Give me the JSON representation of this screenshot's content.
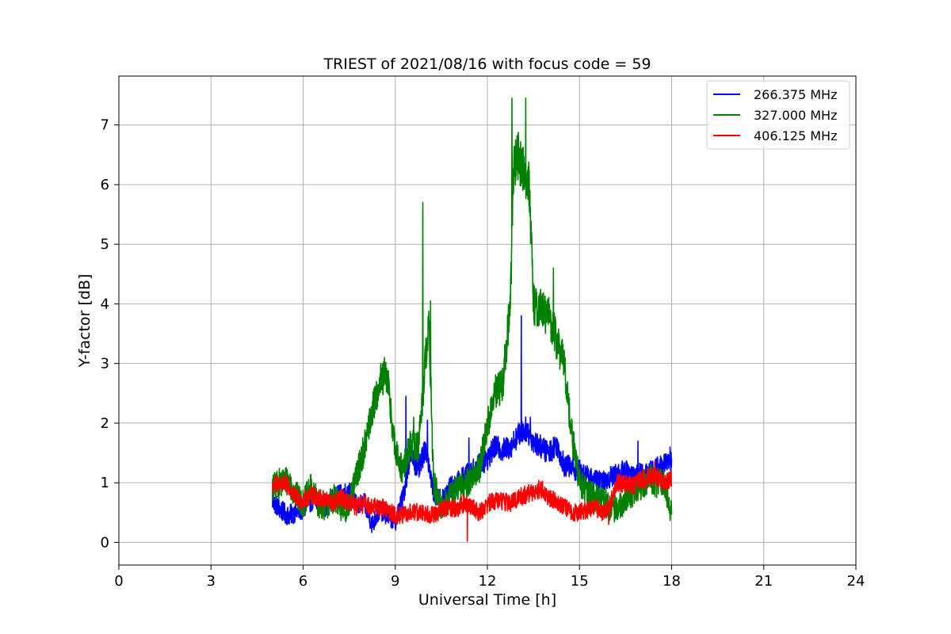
{
  "chart_data": {
    "type": "line",
    "title": "TRIEST of 2021/08/16 with focus code = 59",
    "xlabel": "Universal Time [h]",
    "ylabel": "Y-factor [dB]",
    "xlim": [
      0,
      24
    ],
    "ylim": [
      -0.38,
      7.82
    ],
    "xticks": [
      0,
      3,
      6,
      9,
      12,
      15,
      18,
      21,
      24
    ],
    "yticks": [
      0,
      1,
      2,
      3,
      4,
      5,
      6,
      7
    ],
    "grid": true,
    "legend_position": "top-right",
    "series": [
      {
        "name": "266.375 MHz",
        "color": "#0000ff",
        "points": [
          [
            5.0,
            0.7
          ],
          [
            5.25,
            0.55
          ],
          [
            5.5,
            0.45
          ],
          [
            5.75,
            0.5
          ],
          [
            6.0,
            0.55
          ],
          [
            6.25,
            0.7
          ],
          [
            6.5,
            0.65
          ],
          [
            6.75,
            0.6
          ],
          [
            7.0,
            0.75
          ],
          [
            7.25,
            0.8
          ],
          [
            7.5,
            0.85
          ],
          [
            7.75,
            0.6
          ],
          [
            8.0,
            0.65
          ],
          [
            8.25,
            0.3
          ],
          [
            8.5,
            0.55
          ],
          [
            8.75,
            0.45
          ],
          [
            9.0,
            0.35
          ],
          [
            9.25,
            0.75
          ],
          [
            9.5,
            1.5
          ],
          [
            9.75,
            1.2
          ],
          [
            10.0,
            1.6
          ],
          [
            10.25,
            0.85
          ],
          [
            10.5,
            0.7
          ],
          [
            10.75,
            0.9
          ],
          [
            11.0,
            1.0
          ],
          [
            11.25,
            1.1
          ],
          [
            11.5,
            1.2
          ],
          [
            11.75,
            1.3
          ],
          [
            12.0,
            1.4
          ],
          [
            12.25,
            1.6
          ],
          [
            12.5,
            1.55
          ],
          [
            12.75,
            1.6
          ],
          [
            13.0,
            1.8
          ],
          [
            13.25,
            1.9
          ],
          [
            13.5,
            1.7
          ],
          [
            13.75,
            1.6
          ],
          [
            14.0,
            1.5
          ],
          [
            14.25,
            1.65
          ],
          [
            14.5,
            1.3
          ],
          [
            14.75,
            1.25
          ],
          [
            15.0,
            1.2
          ],
          [
            15.25,
            1.1
          ],
          [
            15.5,
            1.05
          ],
          [
            15.75,
            1.0
          ],
          [
            16.0,
            1.1
          ],
          [
            16.25,
            1.15
          ],
          [
            16.5,
            1.2
          ],
          [
            16.75,
            1.1
          ],
          [
            17.0,
            1.15
          ],
          [
            17.25,
            1.2
          ],
          [
            17.5,
            1.25
          ],
          [
            17.75,
            1.3
          ],
          [
            18.0,
            1.35
          ]
        ],
        "spikes": [
          [
            9.35,
            2.45
          ],
          [
            10.05,
            2.05
          ],
          [
            11.4,
            1.75
          ],
          [
            13.1,
            3.8
          ],
          [
            13.4,
            2.1
          ],
          [
            16.9,
            1.7
          ],
          [
            17.95,
            1.6
          ]
        ]
      },
      {
        "name": "327.000 MHz",
        "color": "#008000",
        "points": [
          [
            5.0,
            0.9
          ],
          [
            5.25,
            1.0
          ],
          [
            5.5,
            1.05
          ],
          [
            5.75,
            0.8
          ],
          [
            6.0,
            0.65
          ],
          [
            6.25,
            0.9
          ],
          [
            6.5,
            0.65
          ],
          [
            6.75,
            0.6
          ],
          [
            7.0,
            0.75
          ],
          [
            7.25,
            0.55
          ],
          [
            7.5,
            0.6
          ],
          [
            7.75,
            1.15
          ],
          [
            8.0,
            1.6
          ],
          [
            8.25,
            2.2
          ],
          [
            8.5,
            2.7
          ],
          [
            8.75,
            2.75
          ],
          [
            9.0,
            1.5
          ],
          [
            9.25,
            1.2
          ],
          [
            9.5,
            1.65
          ],
          [
            9.75,
            1.6
          ],
          [
            9.9,
            2.5
          ],
          [
            10.0,
            3.2
          ],
          [
            10.1,
            3.6
          ],
          [
            10.25,
            1.0
          ],
          [
            10.5,
            0.55
          ],
          [
            10.75,
            0.75
          ],
          [
            11.0,
            0.9
          ],
          [
            11.25,
            0.95
          ],
          [
            11.5,
            1.1
          ],
          [
            11.75,
            1.25
          ],
          [
            12.0,
            1.95
          ],
          [
            12.25,
            2.5
          ],
          [
            12.5,
            2.65
          ],
          [
            12.75,
            4.0
          ],
          [
            12.85,
            6.3
          ],
          [
            13.0,
            6.5
          ],
          [
            13.2,
            6.2
          ],
          [
            13.35,
            6.1
          ],
          [
            13.5,
            4.0
          ],
          [
            13.75,
            3.9
          ],
          [
            14.0,
            3.8
          ],
          [
            14.25,
            3.4
          ],
          [
            14.5,
            3.0
          ],
          [
            14.75,
            1.8
          ],
          [
            15.0,
            1.0
          ],
          [
            15.25,
            0.85
          ],
          [
            15.5,
            0.75
          ],
          [
            15.75,
            0.7
          ],
          [
            16.0,
            0.6
          ],
          [
            16.25,
            0.55
          ],
          [
            16.5,
            0.75
          ],
          [
            16.75,
            0.85
          ],
          [
            17.0,
            0.95
          ],
          [
            17.25,
            1.1
          ],
          [
            17.5,
            1.0
          ],
          [
            17.75,
            1.0
          ],
          [
            18.0,
            0.5
          ]
        ],
        "spikes": [
          [
            9.9,
            5.7
          ],
          [
            10.15,
            4.05
          ],
          [
            12.8,
            7.45
          ],
          [
            13.25,
            7.45
          ],
          [
            14.15,
            4.6
          ],
          [
            8.65,
            3.1
          ],
          [
            9.6,
            2.1
          ]
        ]
      },
      {
        "name": "406.125 MHz",
        "color": "#ff0000",
        "points": [
          [
            5.0,
            0.95
          ],
          [
            5.25,
            1.0
          ],
          [
            5.5,
            0.95
          ],
          [
            5.75,
            0.75
          ],
          [
            6.0,
            0.7
          ],
          [
            6.25,
            0.8
          ],
          [
            6.5,
            0.75
          ],
          [
            6.75,
            0.7
          ],
          [
            7.0,
            0.65
          ],
          [
            7.25,
            0.75
          ],
          [
            7.5,
            0.65
          ],
          [
            7.75,
            0.6
          ],
          [
            8.0,
            0.65
          ],
          [
            8.25,
            0.6
          ],
          [
            8.5,
            0.6
          ],
          [
            8.75,
            0.55
          ],
          [
            9.0,
            0.45
          ],
          [
            9.25,
            0.45
          ],
          [
            9.5,
            0.5
          ],
          [
            9.75,
            0.5
          ],
          [
            10.0,
            0.5
          ],
          [
            10.25,
            0.45
          ],
          [
            10.5,
            0.55
          ],
          [
            10.75,
            0.6
          ],
          [
            11.0,
            0.55
          ],
          [
            11.25,
            0.65
          ],
          [
            11.5,
            0.6
          ],
          [
            11.75,
            0.5
          ],
          [
            12.0,
            0.65
          ],
          [
            12.25,
            0.7
          ],
          [
            12.5,
            0.7
          ],
          [
            12.75,
            0.65
          ],
          [
            13.0,
            0.75
          ],
          [
            13.25,
            0.8
          ],
          [
            13.5,
            0.85
          ],
          [
            13.75,
            0.9
          ],
          [
            14.0,
            0.75
          ],
          [
            14.25,
            0.7
          ],
          [
            14.5,
            0.6
          ],
          [
            14.75,
            0.5
          ],
          [
            15.0,
            0.5
          ],
          [
            15.25,
            0.55
          ],
          [
            15.5,
            0.6
          ],
          [
            15.75,
            0.5
          ],
          [
            16.0,
            0.65
          ],
          [
            16.25,
            1.0
          ],
          [
            16.5,
            1.0
          ],
          [
            16.75,
            0.95
          ],
          [
            17.0,
            1.05
          ],
          [
            17.25,
            1.1
          ],
          [
            17.5,
            1.1
          ],
          [
            17.75,
            1.0
          ],
          [
            18.0,
            1.05
          ]
        ],
        "spikes": [
          [
            11.35,
            0.02
          ],
          [
            15.95,
            0.3
          ],
          [
            17.45,
            1.35
          ]
        ]
      }
    ]
  }
}
